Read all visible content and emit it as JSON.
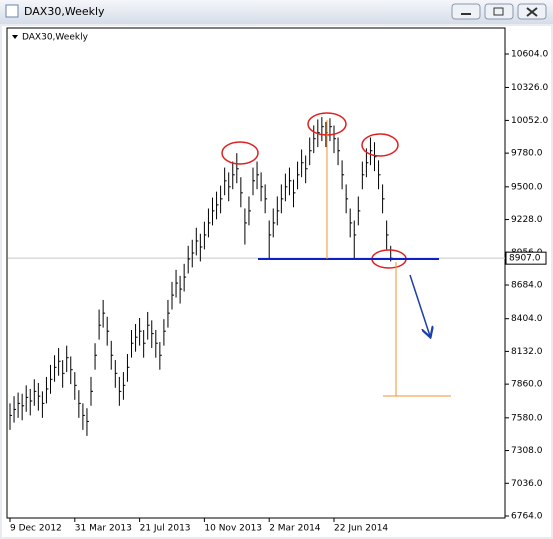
{
  "window_title": "DAX30,Weekly",
  "chart_data": {
    "type": "ohlc",
    "title": "DAX30,Weekly",
    "color": "#000000",
    "high": [
      7700,
      7760,
      7790,
      7780,
      7850,
      7820,
      7900,
      7870,
      7800,
      7920,
      8020,
      8100,
      8160,
      8060,
      8180,
      8090,
      7960,
      7810,
      7700,
      7660,
      7920,
      8200,
      8480,
      8560,
      8420,
      8220,
      8060,
      7920,
      7960,
      8110,
      8310,
      8360,
      8410,
      8310,
      8460,
      8390,
      8310,
      8210,
      8400,
      8560,
      8710,
      8810,
      8760,
      8860,
      9010,
      9060,
      9160,
      9110,
      9210,
      9320,
      9410,
      9460,
      9510,
      9660,
      9620,
      9710,
      9780,
      9580,
      9320,
      9420,
      9660,
      9710,
      9620,
      9520,
      9220,
      9320,
      9420,
      9520,
      9610,
      9660,
      9560,
      9710,
      9810,
      9760,
      9910,
      10010,
      10060,
      10080,
      10040,
      10070,
      10010,
      9910,
      9720,
      9520,
      9320,
      9220,
      9420,
      9710,
      9820,
      9910,
      9870,
      9720,
      9520,
      9220,
      9010
    ],
    "low": [
      7480,
      7540,
      7580,
      7560,
      7630,
      7600,
      7680,
      7640,
      7580,
      7700,
      7780,
      7880,
      7930,
      7830,
      7960,
      7860,
      7730,
      7580,
      7480,
      7430,
      7680,
      7980,
      8230,
      8330,
      8180,
      7980,
      7830,
      7680,
      7730,
      7880,
      8080,
      8130,
      8180,
      8080,
      8230,
      8160,
      8080,
      7980,
      8180,
      8330,
      8480,
      8580,
      8530,
      8630,
      8780,
      8830,
      8930,
      8880,
      8980,
      9080,
      9180,
      9230,
      9280,
      9430,
      9380,
      9480,
      9530,
      9330,
      9020,
      9180,
      9430,
      9480,
      9380,
      9280,
      8900,
      9080,
      9180,
      9280,
      9380,
      9430,
      9330,
      9480,
      9580,
      9530,
      9680,
      9780,
      9830,
      9880,
      9830,
      9880,
      9780,
      9680,
      9480,
      9280,
      9080,
      8900,
      9180,
      9480,
      9580,
      9680,
      9630,
      9480,
      9280,
      8980,
      8880
    ],
    "close": [
      7600,
      7650,
      7700,
      7680,
      7750,
      7720,
      7800,
      7760,
      7700,
      7820,
      7900,
      8000,
      8050,
      7950,
      8080,
      7980,
      7850,
      7700,
      7600,
      7550,
      7800,
      8100,
      8350,
      8450,
      8300,
      8100,
      7950,
      7800,
      7850,
      8000,
      8200,
      8250,
      8300,
      8200,
      8350,
      8280,
      8200,
      8100,
      8300,
      8450,
      8600,
      8700,
      8650,
      8750,
      8900,
      8950,
      9050,
      9000,
      9100,
      9200,
      9300,
      9350,
      9400,
      9550,
      9500,
      9600,
      9650,
      9450,
      9200,
      9300,
      9550,
      9600,
      9500,
      9400,
      9100,
      9200,
      9300,
      9400,
      9500,
      9550,
      9450,
      9600,
      9700,
      9650,
      9800,
      9900,
      9950,
      10000,
      9950,
      10000,
      9900,
      9800,
      9600,
      9400,
      9200,
      9100,
      9300,
      9600,
      9700,
      9800,
      9750,
      9600,
      9400,
      9100,
      8907
    ],
    "ylim": [
      6764,
      10604
    ],
    "yticks": [
      {
        "value": 10604,
        "label": "10604.0"
      },
      {
        "value": 10326,
        "label": "10326.0"
      },
      {
        "value": 10052,
        "label": "10052.0"
      },
      {
        "value": 9780,
        "label": "9780.0"
      },
      {
        "value": 9500,
        "label": "9500.0"
      },
      {
        "value": 9228,
        "label": "9228.0"
      },
      {
        "value": 8956,
        "label": "8956.0"
      },
      {
        "value": 8684,
        "label": "8684.0"
      },
      {
        "value": 8404,
        "label": "8404.0"
      },
      {
        "value": 8132,
        "label": "8132.0"
      },
      {
        "value": 7860,
        "label": "7860.0"
      },
      {
        "value": 7580,
        "label": "7580.0"
      },
      {
        "value": 7308,
        "label": "7308.0"
      },
      {
        "value": 7036,
        "label": "7036.0"
      },
      {
        "value": 6764,
        "label": "6764.0"
      }
    ],
    "xticks": [
      {
        "value": 0,
        "label": "9 Dec 2012"
      },
      {
        "value": 16,
        "label": "31 Mar 2013"
      },
      {
        "value": 32,
        "label": "21 Jul 2013"
      },
      {
        "value": 48,
        "label": "10 Nov 2013"
      },
      {
        "value": 64,
        "label": "2 Mar 2014"
      },
      {
        "value": 80,
        "label": "22 Jun 2014"
      }
    ],
    "price_label": {
      "value": 8907,
      "label": "8907.0"
    }
  }
}
